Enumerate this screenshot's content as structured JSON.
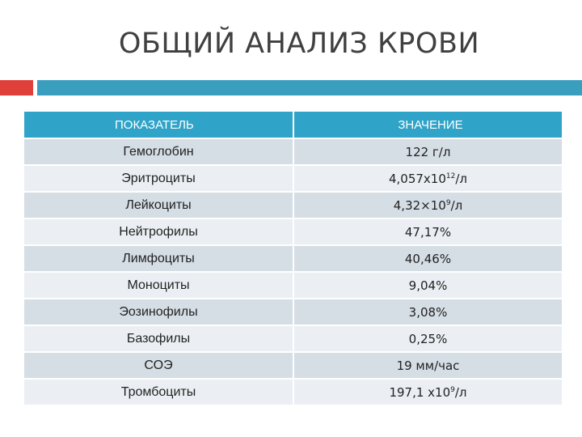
{
  "title": "ОБЩИЙ АНАЛИЗ КРОВИ",
  "colors": {
    "accent_red": "#e0403a",
    "accent_teal": "#3a9fbf",
    "header_bg": "#2fa3c8"
  },
  "table": {
    "headers": [
      "ПОКАЗАТЕЛЬ",
      "ЗНАЧЕНИЕ"
    ],
    "rows": [
      {
        "name": "Гемоглобин",
        "value": "122 г/л"
      },
      {
        "name": "Эритроциты",
        "value_base": "4,057x10",
        "value_exp": "12",
        "value_unit": "/л"
      },
      {
        "name": "Лейкоциты",
        "value_base": "4,32×10",
        "value_exp": "9",
        "value_unit": "/л"
      },
      {
        "name": "Нейтрофилы",
        "value": "47,17%"
      },
      {
        "name": "Лимфоциты",
        "value": "40,46%"
      },
      {
        "name": "Моноциты",
        "value": "9,04%"
      },
      {
        "name": "Эозинофилы",
        "value": "3,08%"
      },
      {
        "name": "Базофилы",
        "value": "0,25%"
      },
      {
        "name": "СОЭ",
        "value": "19 мм/час"
      },
      {
        "name": "Тромбоциты",
        "value_base": "197,1 x10",
        "value_exp": "9",
        "value_unit": "/л"
      }
    ]
  }
}
